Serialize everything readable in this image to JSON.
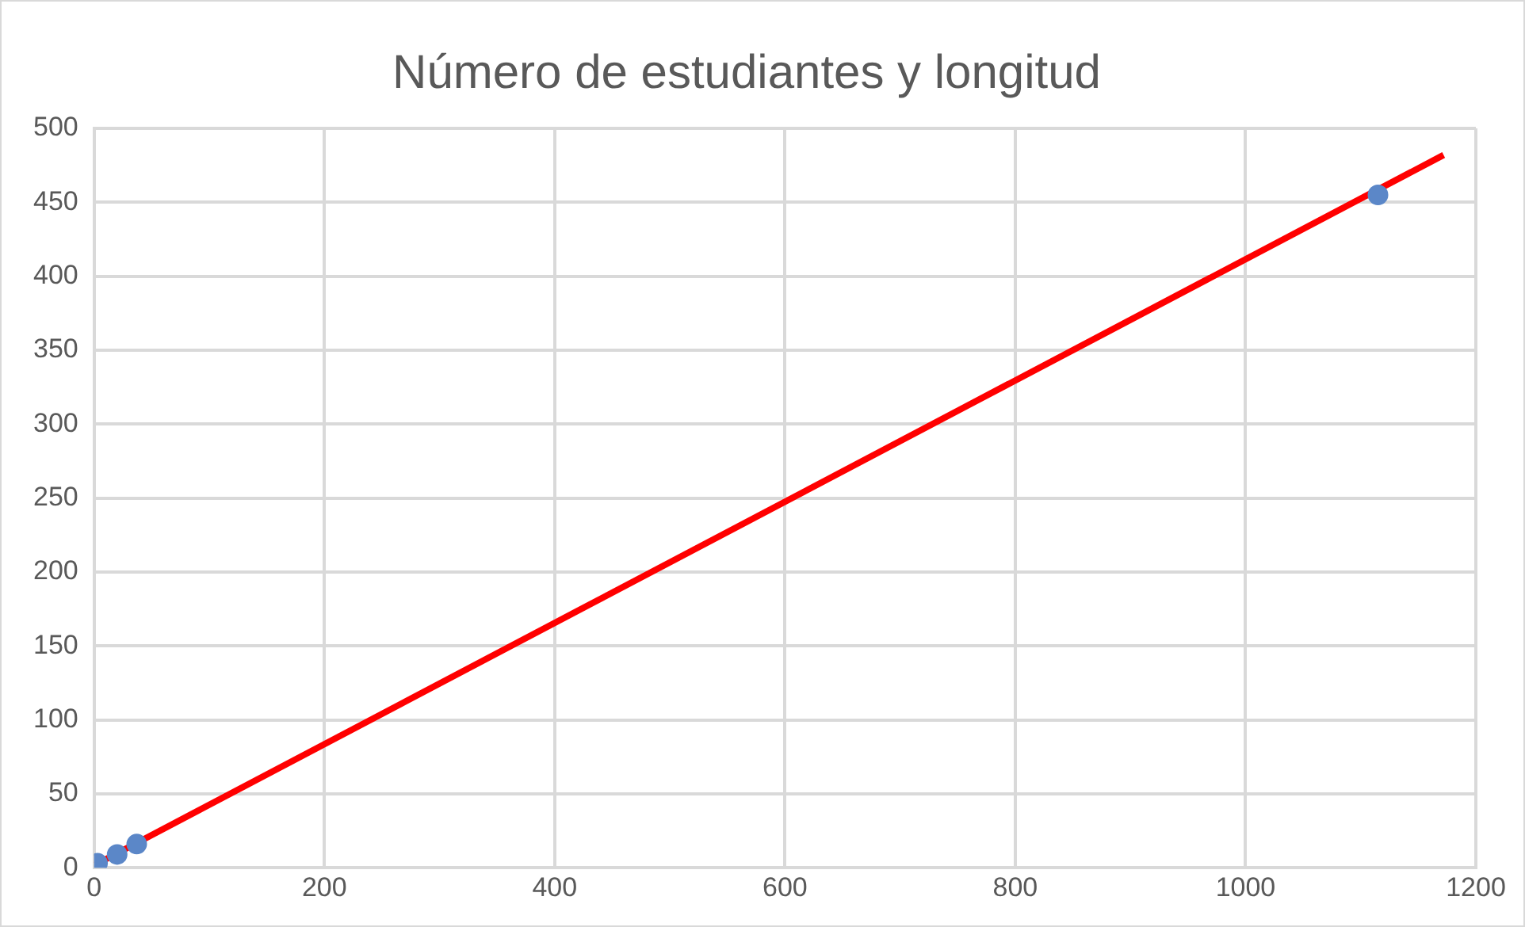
{
  "chart_data": {
    "type": "scatter",
    "title": "Número de estudiantes y longitud",
    "series": [
      {
        "color": "#5b87c8",
        "x": [
          3,
          20,
          37,
          1115
        ],
        "values": [
          3,
          9,
          16,
          455
        ]
      },
      {
        "type": "line",
        "marker": "none",
        "color": "#ff0000",
        "x": [
          1,
          1172
        ],
        "values": [
          2,
          482
        ]
      }
    ],
    "xlim": [
      0,
      1200
    ],
    "xticks": [
      0,
      200,
      400,
      600,
      800,
      1000,
      1200
    ],
    "ylim": [
      0,
      500
    ],
    "yticks": [
      0,
      50,
      100,
      150,
      200,
      250,
      300,
      350,
      400,
      450,
      500
    ],
    "grid": true,
    "legend": false,
    "marker": "circle"
  }
}
